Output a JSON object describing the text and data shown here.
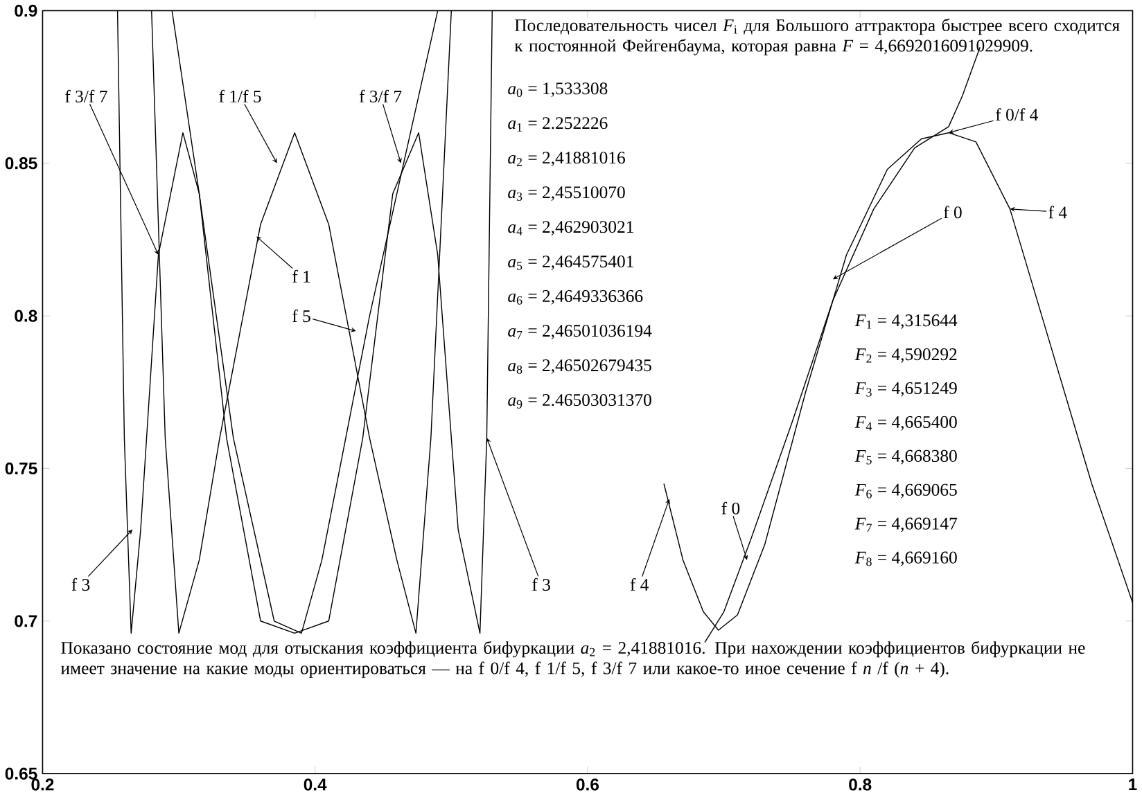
{
  "chart_data": {
    "type": "line",
    "xlim": [
      0.2,
      1
    ],
    "ylim": [
      0.65,
      0.9
    ],
    "xticks": [
      0.2,
      0.4,
      0.6,
      0.8,
      {
        "value": 1,
        "label": "1"
      }
    ],
    "yticks": [
      0.65,
      0.7,
      0.75,
      0.8,
      0.85,
      0.9
    ],
    "series": [
      {
        "color": "#000000",
        "x": [
          0.255,
          0.26,
          0.265,
          0.272,
          0.285,
          0.303,
          0.315,
          0.335,
          0.36,
          0.385,
          0.41,
          0.435,
          0.457,
          0.476,
          0.49,
          0.505,
          0.521,
          0.526,
          0.53
        ],
        "values": [
          0.9,
          0.76,
          0.696,
          0.73,
          0.82,
          0.86,
          0.84,
          0.76,
          0.7,
          0.696,
          0.7,
          0.76,
          0.84,
          0.86,
          0.82,
          0.73,
          0.696,
          0.76,
          0.9
        ]
      },
      {
        "color": "#000000",
        "x": [
          0.28,
          0.29,
          0.3,
          0.315,
          0.33,
          0.36,
          0.385,
          0.41,
          0.44,
          0.46,
          0.474,
          0.485,
          0.5
        ],
        "values": [
          0.9,
          0.76,
          0.696,
          0.72,
          0.76,
          0.83,
          0.86,
          0.83,
          0.76,
          0.72,
          0.696,
          0.76,
          0.9
        ]
      },
      {
        "color": "#000000",
        "x": [
          0.295,
          0.315,
          0.34,
          0.37,
          0.39,
          0.405,
          0.44,
          0.46,
          0.49
        ],
        "values": [
          0.9,
          0.84,
          0.76,
          0.7,
          0.696,
          0.72,
          0.8,
          0.84,
          0.9
        ]
      },
      {
        "color": "#000000",
        "x": [
          0.656,
          0.67,
          0.685,
          0.696,
          0.71,
          0.73,
          0.76,
          0.79,
          0.82,
          0.845,
          0.865,
          0.885,
          0.91,
          0.94,
          0.97,
          1.0
        ],
        "values": [
          0.745,
          0.72,
          0.703,
          0.697,
          0.702,
          0.725,
          0.775,
          0.82,
          0.848,
          0.858,
          0.86,
          0.857,
          0.835,
          0.79,
          0.745,
          0.706
        ]
      },
      {
        "color": "#000000",
        "x": [
          0.686,
          0.7,
          0.72,
          0.75,
          0.78,
          0.81,
          0.84,
          0.865,
          0.875,
          0.888
        ],
        "values": [
          0.693,
          0.703,
          0.727,
          0.765,
          0.805,
          0.835,
          0.855,
          0.862,
          0.872,
          0.888
        ]
      }
    ],
    "annotations": [
      "Последовательность чисел *F*$_{i}$ для Большого аттрактора быстрее всего сходится к постоянной Фейгенбаума, которая равна *F* = 4,6692016091029909.",
      "*a*$_{0}$ = 1,533308",
      "*a*$_{1}$ = 2.252226",
      "*a*$_{2}$ = 2,41881016",
      "*a*$_{3}$ = 2,45510070",
      "*a*$_{4}$ = 2,462903021",
      "*a*$_{5}$ = 2,464575401",
      "*a*$_{6}$ = 2,4649336366",
      "*a*$_{7}$ = 2,46501036194",
      "*a*$_{8}$ = 2,46502679435",
      "*a*$_{9}$ = 2.46503031370",
      "*F*$_{1}$ = 4,315644",
      "*F*$_{2}$ = 4,590292",
      "*F*$_{3}$ = 4,651249",
      "*F*$_{4}$ = 4,665400",
      "*F*$_{5}$ = 4,668380",
      "*F*$_{6}$ = 4,669065",
      "*F*$_{7}$ = 4,669147",
      "*F*$_{8}$ = 4,669160",
      "Показано состояние мод для отыскания коэффициента бифуркации *a*$_{2}$ = 2,41881016. При нахождении коэффициентов бифуркации не имеет значение на какие моды ориентироваться — на f 0/f 4, f 1/f 5, f 3/f 7 или какое-то иное сечение f *n* /f (*n* + 4).",
      {
        "text": "f 3/f 7",
        "x": 0.285,
        "y": 0.82
      },
      {
        "text": "f 1/f 5",
        "x": 0.372,
        "y": 0.85
      },
      {
        "text": "f 3/f 7",
        "x": 0.463,
        "y": 0.85
      },
      {
        "text": "f 1",
        "x": 0.357,
        "y": 0.826
      },
      {
        "text": "f 5",
        "x": 0.43,
        "y": 0.795
      },
      {
        "text": "f 3",
        "x": 0.266,
        "y": 0.73
      },
      {
        "text": "f 3",
        "x": 0.526,
        "y": 0.76
      },
      {
        "text": "f 0/f 4",
        "x": 0.865,
        "y": 0.86
      },
      {
        "text": "f 0",
        "x": 0.78,
        "y": 0.812
      },
      {
        "text": "f 4",
        "x": 0.91,
        "y": 0.835
      },
      {
        "text": "f 4",
        "x": 0.66,
        "y": 0.74
      },
      {
        "text": "f 0",
        "x": 0.717,
        "y": 0.72
      }
    ]
  }
}
